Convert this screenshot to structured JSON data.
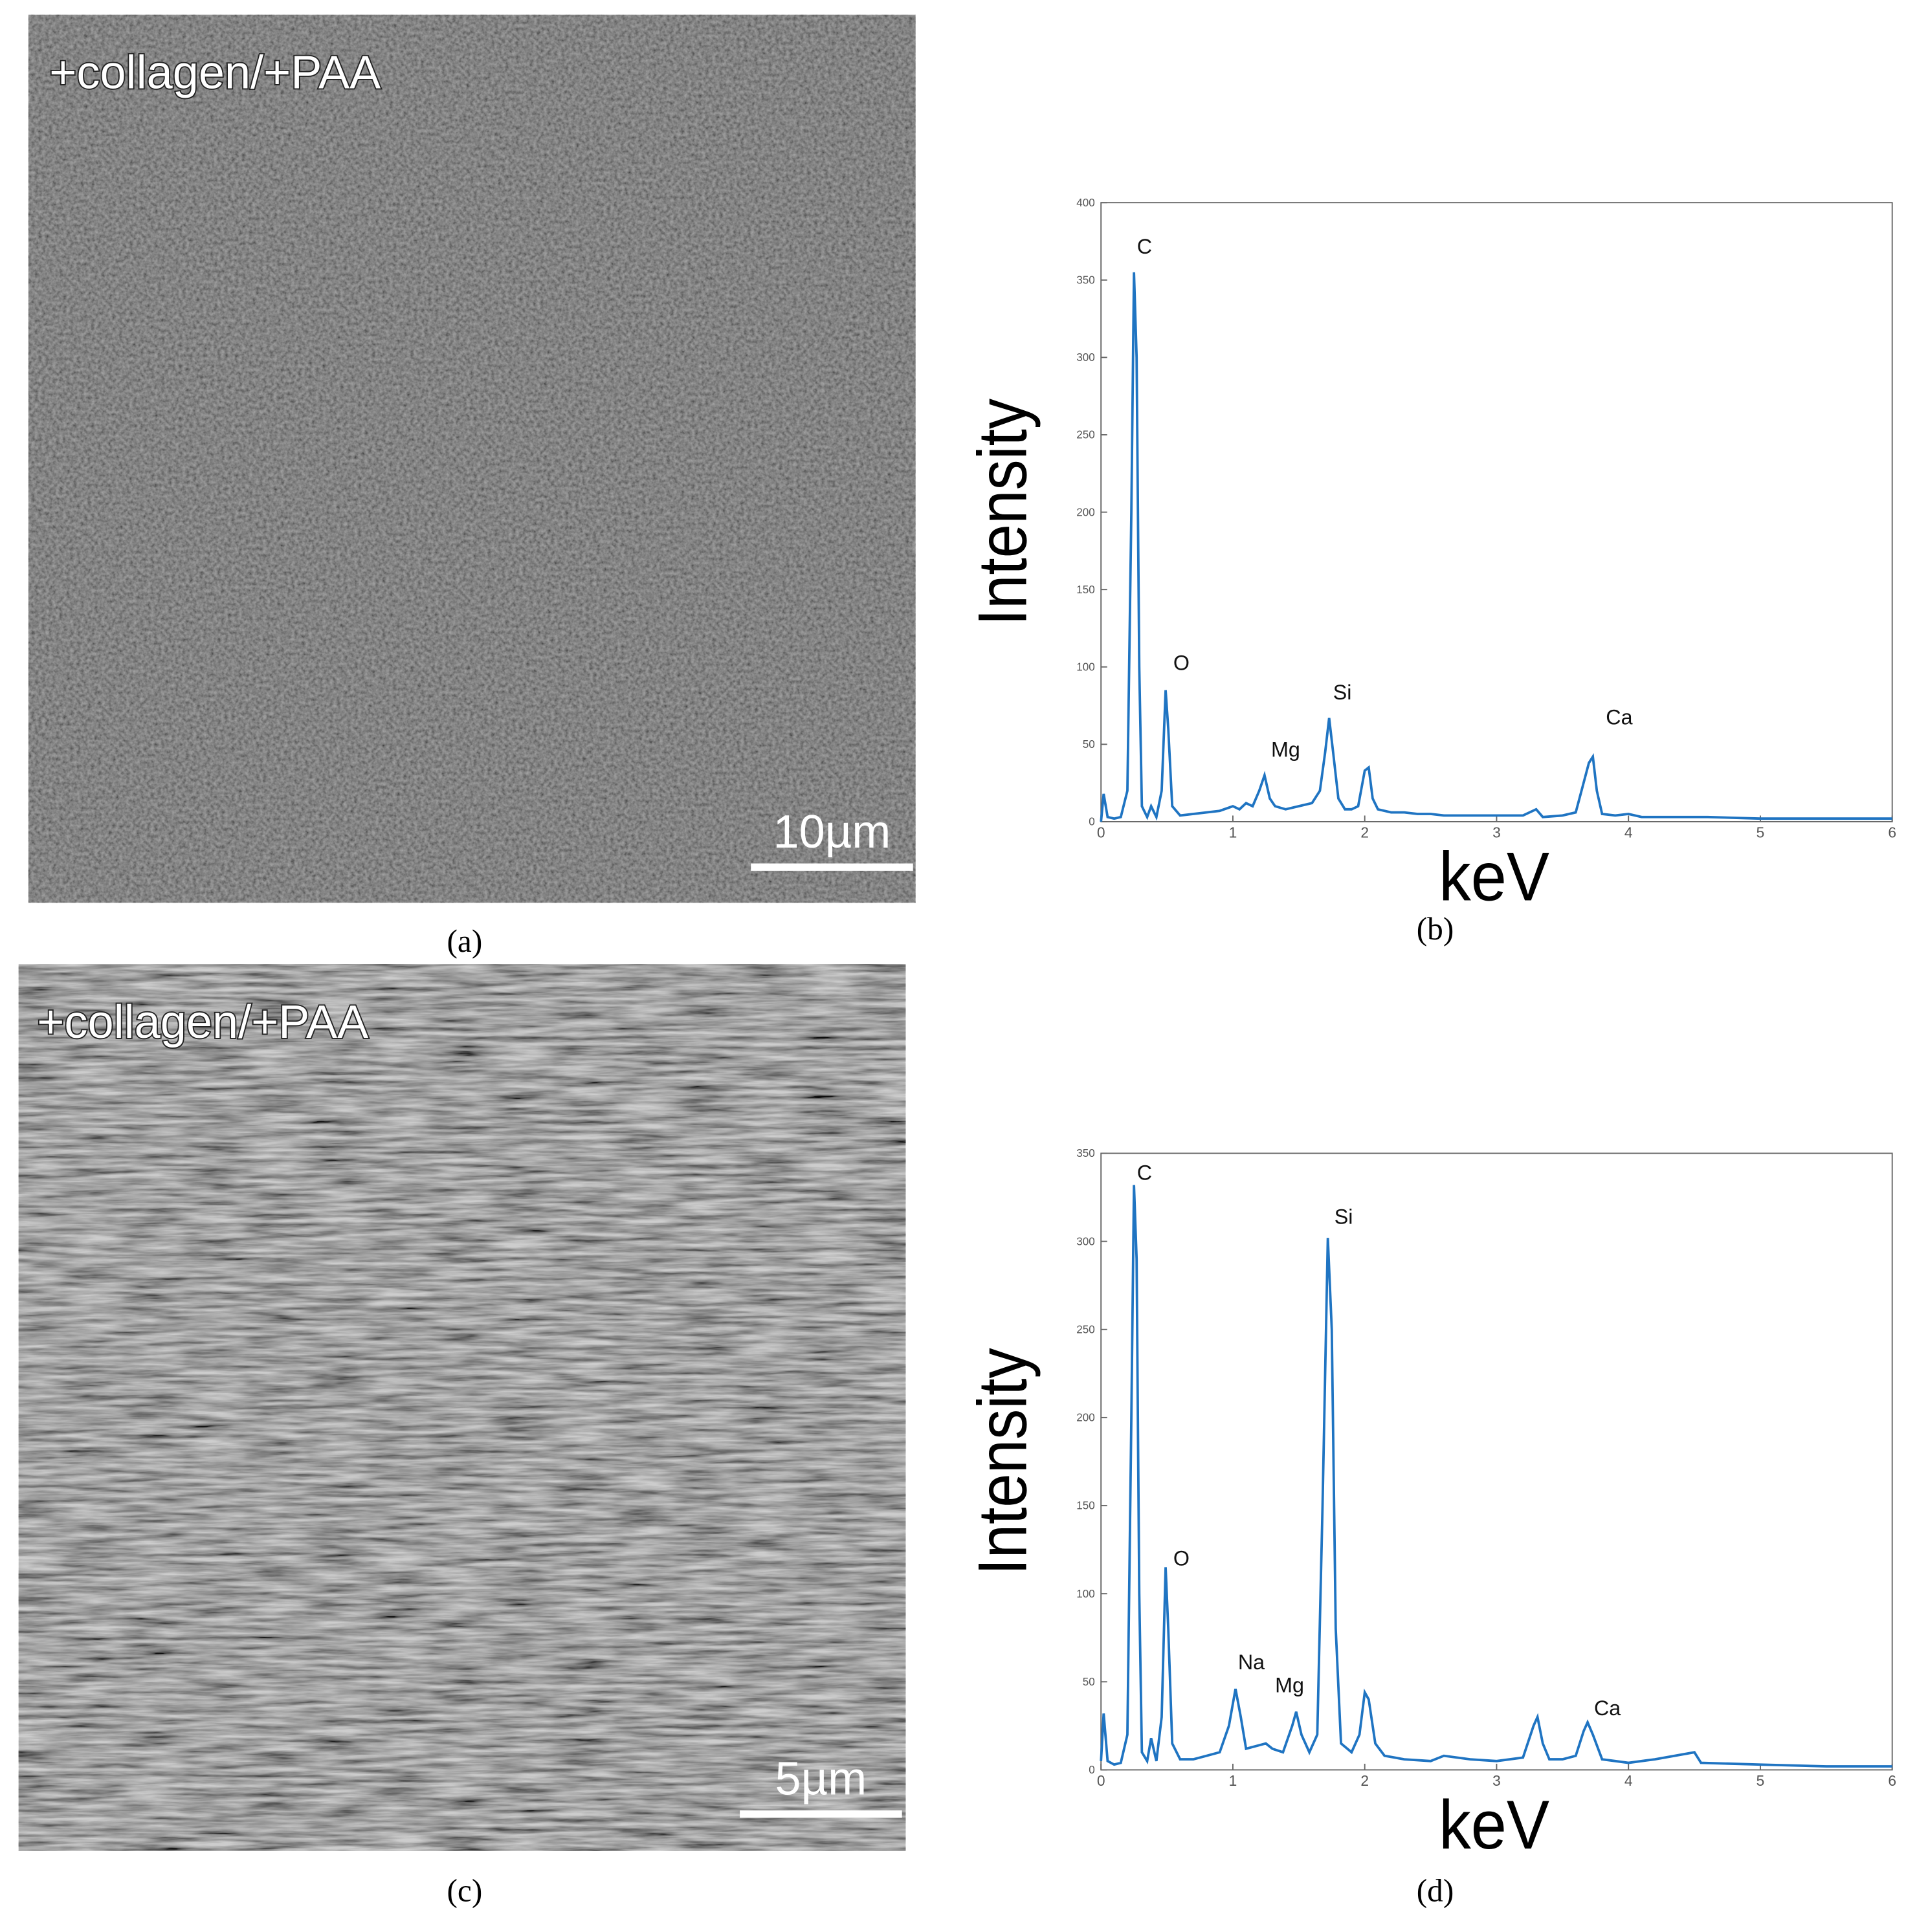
{
  "chart_data": [
    {
      "type": "line",
      "panel_label": "(b)",
      "x_label": "keV",
      "y_label": "Intensity",
      "color": "#1f74c2",
      "xlim": [
        0,
        6
      ],
      "xticks": [
        0,
        1,
        2,
        3,
        4,
        5,
        6
      ],
      "ylim": [
        0,
        400
      ],
      "yticks": [
        0,
        50,
        100,
        150,
        200,
        250,
        300,
        350,
        400
      ],
      "x": [
        0,
        0.02,
        0.05,
        0.1,
        0.15,
        0.2,
        0.23,
        0.25,
        0.27,
        0.29,
        0.31,
        0.35,
        0.38,
        0.42,
        0.46,
        0.49,
        0.51,
        0.54,
        0.6,
        0.7,
        0.8,
        0.9,
        1.0,
        1.05,
        1.1,
        1.15,
        1.2,
        1.24,
        1.28,
        1.32,
        1.4,
        1.5,
        1.6,
        1.66,
        1.7,
        1.73,
        1.76,
        1.8,
        1.85,
        1.9,
        1.95,
        2.0,
        2.03,
        2.06,
        2.1,
        2.2,
        2.3,
        2.4,
        2.5,
        2.6,
        2.8,
        3.0,
        3.2,
        3.3,
        3.35,
        3.5,
        3.6,
        3.65,
        3.7,
        3.73,
        3.76,
        3.8,
        3.9,
        4.0,
        4.1,
        4.3,
        4.6,
        5.0,
        5.5,
        6.0
      ],
      "values": [
        0,
        18,
        3,
        2,
        3,
        20,
        200,
        355,
        300,
        100,
        10,
        3,
        10,
        3,
        20,
        85,
        60,
        10,
        4,
        5,
        6,
        7,
        10,
        8,
        12,
        10,
        20,
        30,
        15,
        10,
        8,
        10,
        12,
        20,
        45,
        67,
        45,
        15,
        8,
        8,
        10,
        33,
        35,
        15,
        8,
        6,
        6,
        5,
        5,
        4,
        4,
        4,
        4,
        8,
        3,
        4,
        6,
        22,
        38,
        42,
        20,
        5,
        4,
        5,
        3,
        3,
        3,
        2,
        2,
        2
      ],
      "annotations": [
        {
          "text": "C",
          "x": 0.33,
          "y": 367
        },
        {
          "text": "O",
          "x": 0.61,
          "y": 98
        },
        {
          "text": "Mg",
          "x": 1.4,
          "y": 42
        },
        {
          "text": "Si",
          "x": 1.83,
          "y": 79
        },
        {
          "text": "Ca",
          "x": 3.93,
          "y": 63
        }
      ]
    },
    {
      "type": "line",
      "panel_label": "(d)",
      "x_label": "keV",
      "y_label": "Intensity",
      "color": "#1f74c2",
      "xlim": [
        0,
        6
      ],
      "xticks": [
        0,
        1,
        2,
        3,
        4,
        5,
        6
      ],
      "ylim": [
        0,
        350
      ],
      "yticks": [
        0,
        50,
        100,
        150,
        200,
        250,
        300,
        350
      ],
      "x": [
        0,
        0.02,
        0.05,
        0.1,
        0.15,
        0.2,
        0.23,
        0.25,
        0.27,
        0.29,
        0.31,
        0.35,
        0.38,
        0.42,
        0.46,
        0.49,
        0.51,
        0.54,
        0.6,
        0.7,
        0.8,
        0.9,
        0.97,
        1.02,
        1.06,
        1.1,
        1.2,
        1.25,
        1.3,
        1.38,
        1.45,
        1.48,
        1.52,
        1.58,
        1.64,
        1.68,
        1.72,
        1.75,
        1.78,
        1.82,
        1.9,
        1.96,
        2.0,
        2.03,
        2.08,
        2.15,
        2.3,
        2.5,
        2.6,
        2.8,
        3.0,
        3.2,
        3.28,
        3.31,
        3.35,
        3.4,
        3.5,
        3.6,
        3.66,
        3.69,
        3.73,
        3.8,
        3.9,
        4.0,
        4.2,
        4.5,
        4.55,
        5.0,
        5.5,
        6.0
      ],
      "values": [
        5,
        32,
        5,
        3,
        4,
        20,
        200,
        332,
        290,
        100,
        10,
        5,
        18,
        5,
        30,
        115,
        80,
        15,
        6,
        6,
        8,
        10,
        25,
        46,
        30,
        12,
        14,
        15,
        12,
        10,
        25,
        33,
        20,
        10,
        20,
        150,
        302,
        250,
        80,
        15,
        10,
        20,
        44,
        40,
        15,
        8,
        6,
        5,
        8,
        6,
        5,
        7,
        25,
        30,
        15,
        6,
        6,
        8,
        22,
        27,
        20,
        6,
        5,
        4,
        6,
        10,
        4,
        3,
        2,
        2
      ],
      "annotations": [
        {
          "text": "C",
          "x": 0.33,
          "y": 335
        },
        {
          "text": "Si",
          "x": 1.84,
          "y": 310
        },
        {
          "text": "O",
          "x": 0.61,
          "y": 116
        },
        {
          "text": "Na",
          "x": 1.14,
          "y": 57
        },
        {
          "text": "Mg",
          "x": 1.43,
          "y": 44
        },
        {
          "text": "Ca",
          "x": 3.84,
          "y": 31
        }
      ]
    }
  ],
  "images": [
    {
      "panel_label": "(a)",
      "overlay": "+collagen/+PAA",
      "scale_bar": "10µm"
    },
    {
      "panel_label": "(c)",
      "overlay": "+collagen/+PAA",
      "scale_bar": "5µm"
    }
  ]
}
